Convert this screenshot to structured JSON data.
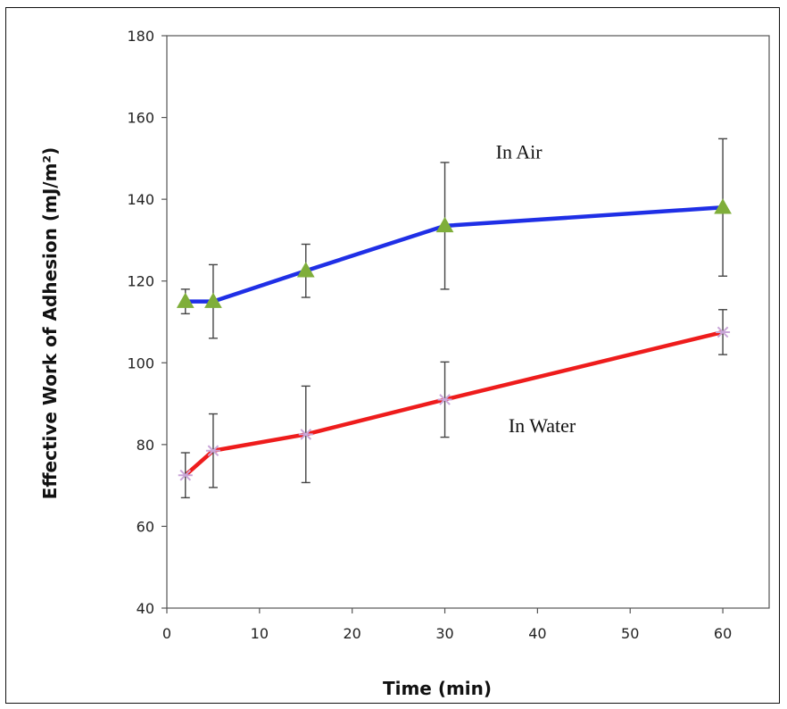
{
  "chart_data": {
    "type": "line",
    "xlabel": "Time (min)",
    "ylabel": "Effective Work of Adhesion (mJ/m²)",
    "xlim": [
      0,
      65
    ],
    "ylim": [
      40,
      180
    ],
    "x_ticks": [
      0,
      10,
      20,
      30,
      40,
      50,
      60
    ],
    "y_ticks": [
      40,
      60,
      80,
      100,
      120,
      140,
      160,
      180
    ],
    "grid": false,
    "series": [
      {
        "name": "In Air",
        "color": "#1f2fe6",
        "marker": "triangle",
        "marker_color": "#7fae3a",
        "x": [
          2,
          5,
          15,
          30,
          60
        ],
        "y": [
          115,
          115,
          122.5,
          133.5,
          138
        ],
        "error": [
          3,
          9,
          6.5,
          15.5,
          16.8
        ]
      },
      {
        "name": "In Water",
        "color": "#ee1c1c",
        "marker": "asterisk",
        "marker_color": "#c9a6d8",
        "x": [
          2,
          5,
          15,
          30,
          60
        ],
        "y": [
          72.5,
          78.5,
          82.5,
          91,
          107.5
        ],
        "error": [
          5.5,
          9,
          11.8,
          9.2,
          5.5
        ]
      }
    ],
    "annotations": [
      {
        "text": "In Air",
        "x": 38,
        "y": 150
      },
      {
        "text": "In Water",
        "x": 40.5,
        "y": 83
      }
    ]
  }
}
